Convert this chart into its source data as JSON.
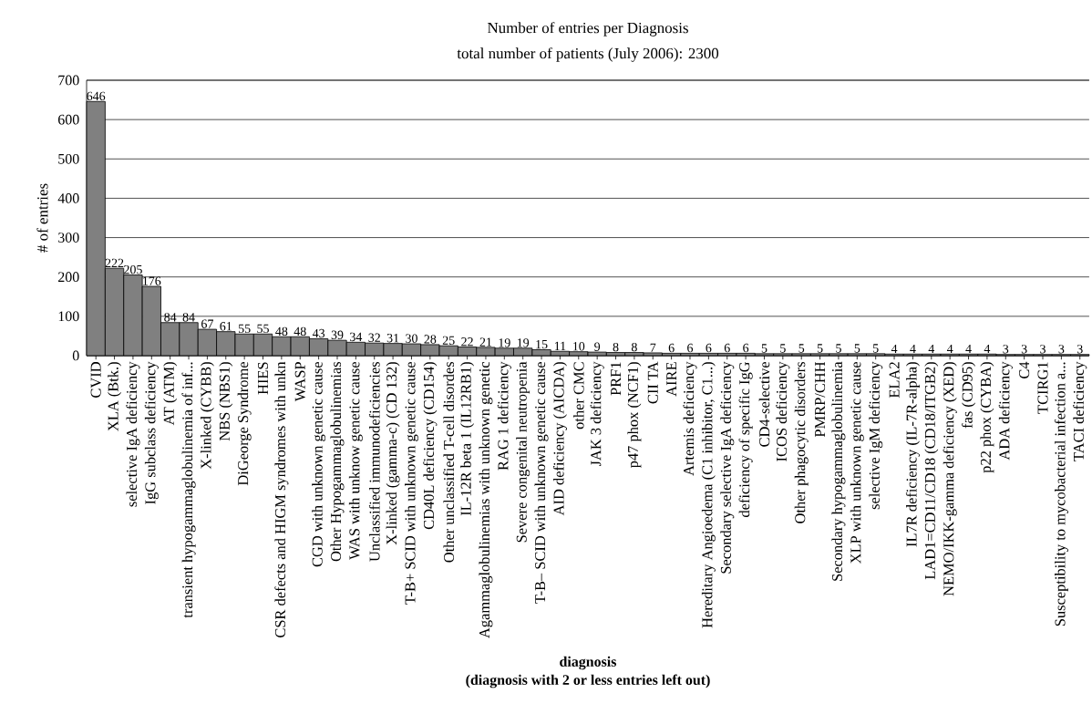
{
  "chart_data": {
    "type": "bar",
    "title": "Number of entries per Diagnosis",
    "subtitle": "total number of patients (July 2006): 2300",
    "xlabel": "diagnosis",
    "ylabel": "# of entries",
    "annotations": [
      "(diagnosis with 2 or less entries left out)"
    ],
    "categories": [
      "CVID",
      "XLA (Btk.)",
      "selective IgA deficiency",
      "IgG subclass deficiency",
      "AT (ATM)",
      "transient hypogammaglobulinemia of inf...",
      "X-linked (CYBB)",
      "NBS (NBS1)",
      "DiGeorge Syndrome",
      "HIES",
      "CSR defects and HIGM syndromes with unkn",
      "WASP",
      "CGD with unknown genetic cause",
      "Other Hypogammaglobulinemias",
      "WAS with unknow genetic cause",
      "Unclassified immunodeficiencies",
      "X-linked (gamma-c) (CD 132)",
      "T-B+ SCID with unknown genetic cause",
      "CD40L deficiency (CD154)",
      "Other unclassified T-cell disordes",
      "IL-12R beta 1 (IL12RB1)",
      "Agammaglobulinemias with unknown genetic",
      "RAG 1 deficiency",
      "Severe congenital neutropenia",
      "T-B– SCID with unknown genetic cause",
      "AID deficiency (AICDA)",
      "other CMC",
      "JAK 3 deficiency",
      "PRF1",
      "p47 phox (NCF1)",
      "CII TA",
      "AIRE",
      "Artemis deficiency",
      "Hereditary Angioedema (C1 inhibitor, C1...)",
      "Secondary selective IgA deficiency",
      "deficiency of specific IgG",
      "CD4-selective",
      "ICOS deficiency",
      "Other phagocytic disorders",
      "PMRP/CHH",
      "Secondary hypogammaglobulinemia",
      "XLP with unknown genetic cause",
      "selective IgM deficiency",
      "ELA2",
      "IL7R deficiency (IL-7R-alpha)",
      "LAD1=CD11/CD18 (CD18/ITGB2)",
      "NEMO/IKK-gamma deficiency (XED)",
      "fas (CD95)",
      "p22 phox (CYBA)",
      "ADA deficiency",
      "C4",
      "TCIRG1",
      "Susceptibility to mycobacterial infection a...",
      "TACI deficiency"
    ],
    "values": [
      646,
      222,
      205,
      176,
      84,
      84,
      67,
      61,
      55,
      55,
      48,
      48,
      43,
      39,
      34,
      32,
      31,
      30,
      28,
      25,
      22,
      21,
      19,
      19,
      15,
      11,
      10,
      9,
      8,
      8,
      7,
      6,
      6,
      6,
      6,
      6,
      5,
      5,
      5,
      5,
      5,
      5,
      5,
      4,
      4,
      4,
      4,
      4,
      4,
      3,
      3,
      3,
      3,
      3
    ],
    "color": "#808080",
    "ylim": [
      0,
      700
    ],
    "yticks": [
      0,
      100,
      200,
      300,
      400,
      500,
      600,
      700
    ],
    "value_labels": [
      "646",
      "222",
      "205",
      "176",
      "84",
      "84",
      "67",
      "61",
      "55",
      "55",
      "48",
      "48",
      "43",
      "39",
      "34",
      "32",
      "31",
      "30",
      "28",
      "25",
      "22",
      "21",
      "19",
      "19",
      "15",
      "11",
      "10",
      "9",
      "8",
      "8",
      "7",
      "6",
      "6",
      "6",
      "6",
      "6",
      "5",
      "5",
      "5",
      "5",
      "5",
      "5",
      "5",
      "4",
      "4",
      "4",
      "4",
      "4",
      "4",
      "3",
      "3",
      "3",
      "3",
      "3"
    ],
    "grid": "y"
  }
}
